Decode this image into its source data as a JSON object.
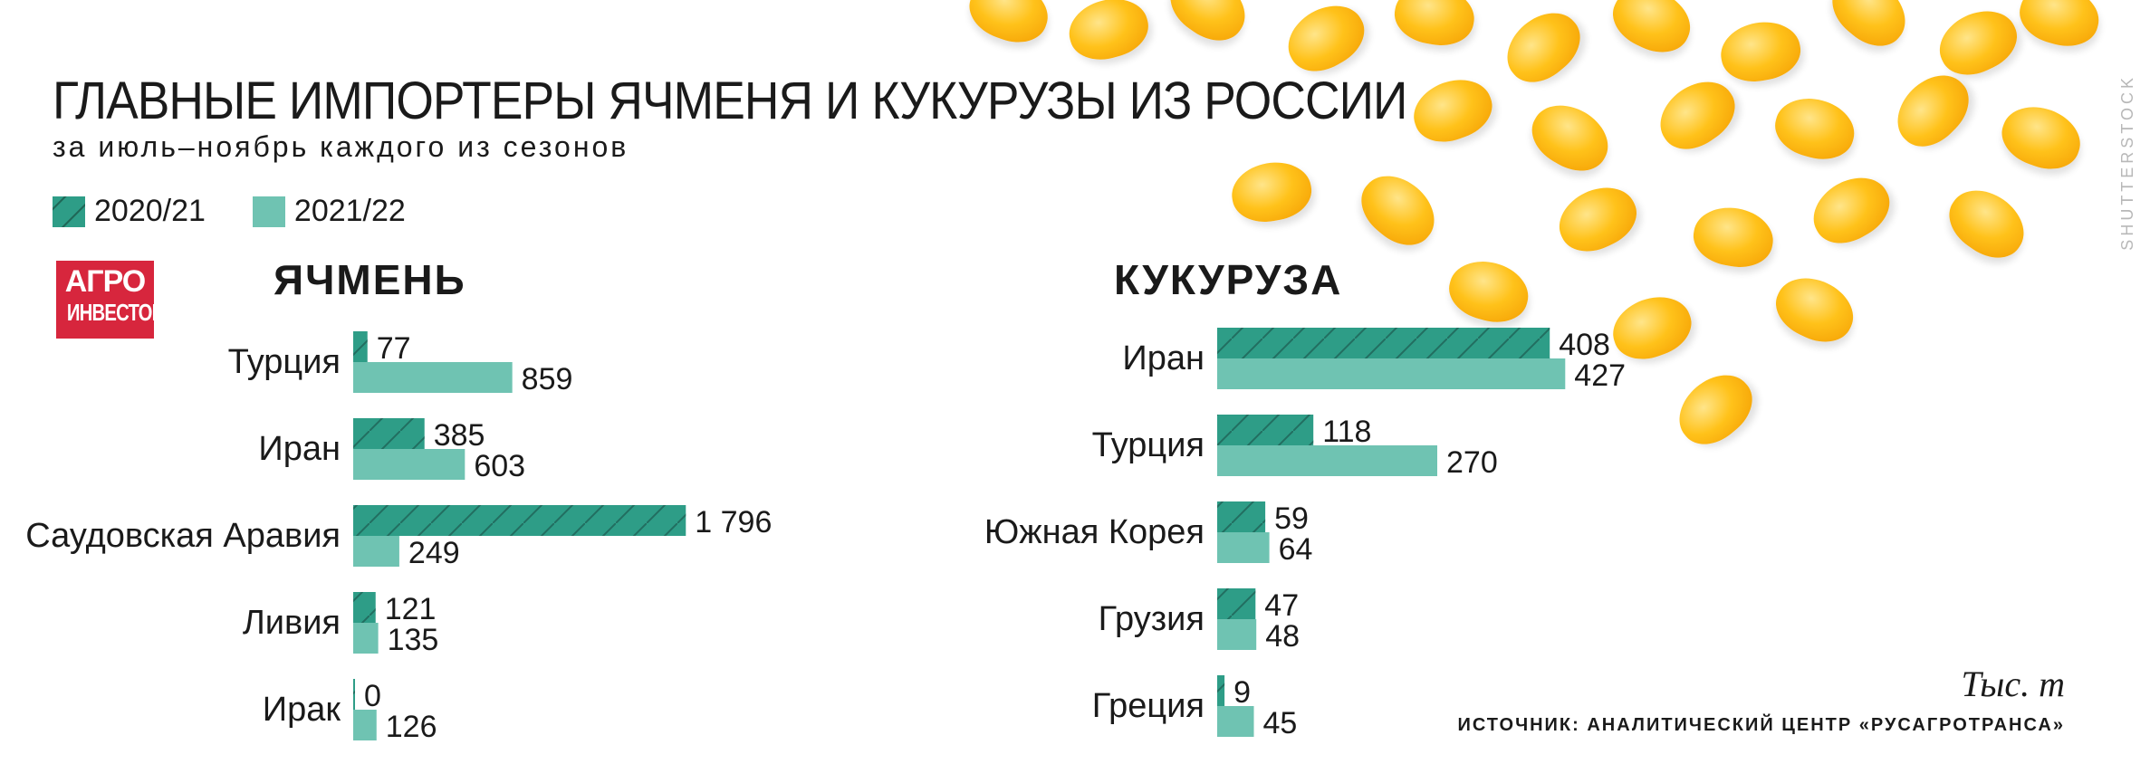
{
  "title": "ГЛАВНЫЕ ИМПОРТЕРЫ ЯЧМЕНЯ И КУКУРУЗЫ ИЗ РОССИИ",
  "subtitle": "за июль–ноябрь каждого из сезонов",
  "logo": {
    "line1": "АГРО",
    "line2": "ИНВЕСТОР"
  },
  "unit": "Тыс. т",
  "source": "ИСТОЧНИК: АНАЛИТИЧЕСКИЙ ЦЕНТР «РУСАГРОТРАНСА»",
  "watermark": "SHUTTERSTOCK",
  "colors": {
    "series1": "#2e9d87",
    "series2": "#6fc3b2",
    "hatch": "#1d5e52",
    "logo": "#d7263d"
  },
  "chart_data": [
    {
      "type": "bar",
      "orientation": "horizontal",
      "title": "ЯЧМЕНЬ",
      "categories": [
        "Турция",
        "Иран",
        "Саудовская Аравия",
        "Ливия",
        "Ирак"
      ],
      "series": [
        {
          "name": "2020/21",
          "values": [
            77,
            385,
            1796,
            121,
            0
          ],
          "labels": [
            "77",
            "385",
            "1 796",
            "121",
            "0"
          ]
        },
        {
          "name": "2021/22",
          "values": [
            859,
            603,
            249,
            135,
            126
          ],
          "labels": [
            "859",
            "603",
            "249",
            "135",
            "126"
          ]
        }
      ],
      "legend": "top-left",
      "grid": false
    },
    {
      "type": "bar",
      "orientation": "horizontal",
      "title": "КУКУРУЗА",
      "categories": [
        "Иран",
        "Турция",
        "Южная Корея",
        "Грузия",
        "Греция"
      ],
      "series": [
        {
          "name": "2020/21",
          "values": [
            408,
            118,
            59,
            47,
            9
          ],
          "labels": [
            "408",
            "118",
            "59",
            "47",
            "9"
          ]
        },
        {
          "name": "2021/22",
          "values": [
            427,
            270,
            64,
            48,
            45
          ],
          "labels": [
            "427",
            "270",
            "64",
            "48",
            "45"
          ]
        }
      ],
      "legend": "top-left",
      "grid": false
    }
  ]
}
